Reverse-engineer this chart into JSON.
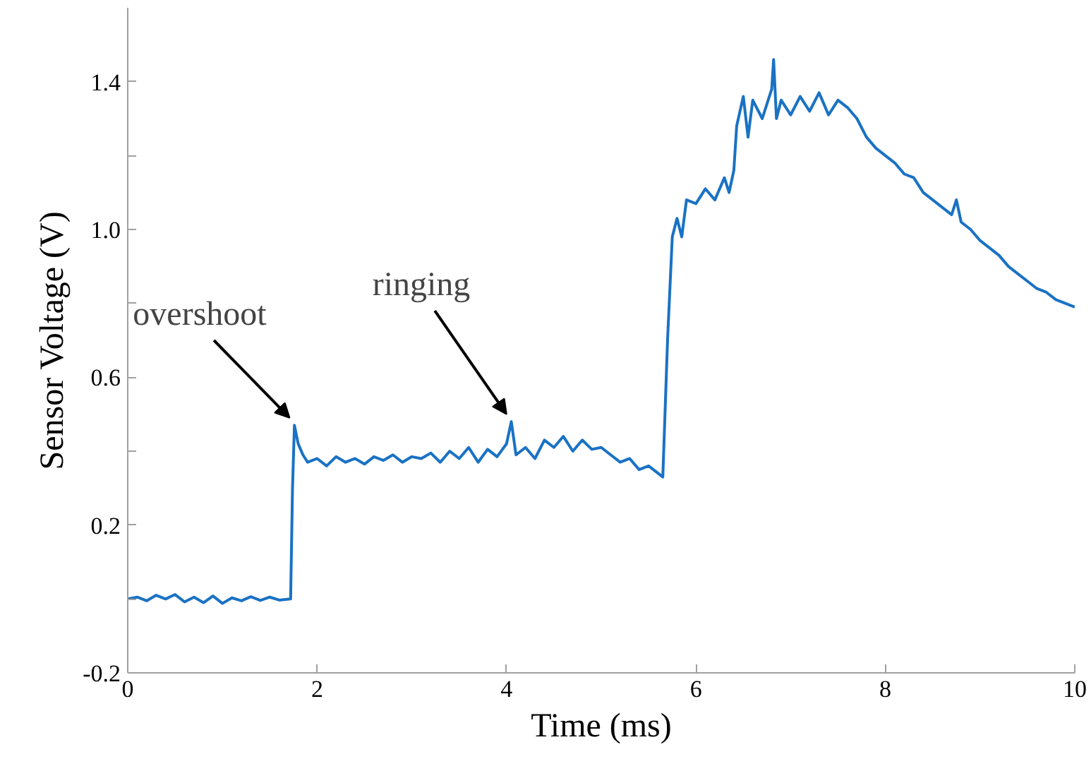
{
  "chart_data": {
    "type": "line",
    "xlabel": "Time (ms)",
    "ylabel": "Sensor Voltage (V)",
    "xlim": [
      0,
      10
    ],
    "xticks": [
      0,
      2,
      4,
      6,
      8,
      10
    ],
    "ylim": [
      -0.2,
      1.6
    ],
    "yticks": [
      -0.2,
      {
        "value": 0,
        "label": null
      },
      0.2,
      {
        "value": 0.4,
        "label": null
      },
      0.6,
      {
        "value": 0.8,
        "label": null
      },
      "1.0",
      {
        "value": 1.2,
        "label": null
      },
      1.4
    ],
    "grid": false,
    "marker": "none",
    "line_style": "solid",
    "annotations": [
      {
        "text": "overshoot",
        "x": 1.76,
        "y": 0.47
      },
      {
        "text": "ringing",
        "x": 4.05,
        "y": 0.48
      }
    ],
    "series": [
      {
        "color": "#1a72c4",
        "x": [
          0,
          0.1,
          0.2,
          0.3,
          0.4,
          0.5,
          0.6,
          0.7,
          0.8,
          0.9,
          1.0,
          1.1,
          1.2,
          1.3,
          1.4,
          1.5,
          1.6,
          1.72,
          1.74,
          1.76,
          1.8,
          1.85,
          1.9,
          2.0,
          2.1,
          2.2,
          2.3,
          2.4,
          2.5,
          2.6,
          2.7,
          2.8,
          2.9,
          3.0,
          3.1,
          3.2,
          3.3,
          3.4,
          3.5,
          3.6,
          3.7,
          3.8,
          3.9,
          4.0,
          4.05,
          4.1,
          4.2,
          4.3,
          4.4,
          4.5,
          4.6,
          4.7,
          4.8,
          4.9,
          5.0,
          5.1,
          5.2,
          5.3,
          5.4,
          5.5,
          5.6,
          5.65,
          5.7,
          5.75,
          5.8,
          5.85,
          5.9,
          6.0,
          6.1,
          6.2,
          6.3,
          6.35,
          6.4,
          6.43,
          6.5,
          6.55,
          6.6,
          6.7,
          6.8,
          6.82,
          6.85,
          6.9,
          7.0,
          7.1,
          7.2,
          7.3,
          7.4,
          7.5,
          7.6,
          7.7,
          7.8,
          7.9,
          8.0,
          8.1,
          8.2,
          8.3,
          8.4,
          8.5,
          8.6,
          8.7,
          8.75,
          8.8,
          8.9,
          9.0,
          9.1,
          9.2,
          9.3,
          9.4,
          9.5,
          9.6,
          9.7,
          9.8,
          9.9,
          10.0
        ],
        "values": [
          0.0,
          0.005,
          -0.005,
          0.01,
          0.0,
          0.012,
          -0.008,
          0.005,
          -0.01,
          0.008,
          -0.012,
          0.003,
          -0.005,
          0.006,
          -0.004,
          0.005,
          -0.003,
          0.0,
          0.3,
          0.47,
          0.42,
          0.39,
          0.37,
          0.38,
          0.36,
          0.385,
          0.37,
          0.38,
          0.365,
          0.385,
          0.375,
          0.39,
          0.37,
          0.385,
          0.38,
          0.395,
          0.37,
          0.4,
          0.38,
          0.41,
          0.37,
          0.405,
          0.385,
          0.42,
          0.48,
          0.39,
          0.41,
          0.38,
          0.43,
          0.41,
          0.44,
          0.4,
          0.43,
          0.405,
          0.41,
          0.39,
          0.37,
          0.38,
          0.35,
          0.36,
          0.34,
          0.33,
          0.7,
          0.98,
          1.03,
          0.98,
          1.08,
          1.07,
          1.11,
          1.08,
          1.14,
          1.1,
          1.16,
          1.28,
          1.36,
          1.25,
          1.35,
          1.3,
          1.38,
          1.46,
          1.3,
          1.35,
          1.31,
          1.36,
          1.32,
          1.37,
          1.31,
          1.35,
          1.33,
          1.3,
          1.25,
          1.22,
          1.2,
          1.18,
          1.15,
          1.14,
          1.1,
          1.08,
          1.06,
          1.04,
          1.08,
          1.02,
          1.0,
          0.97,
          0.95,
          0.93,
          0.9,
          0.88,
          0.86,
          0.84,
          0.83,
          0.81,
          0.8,
          0.79
        ]
      }
    ]
  }
}
